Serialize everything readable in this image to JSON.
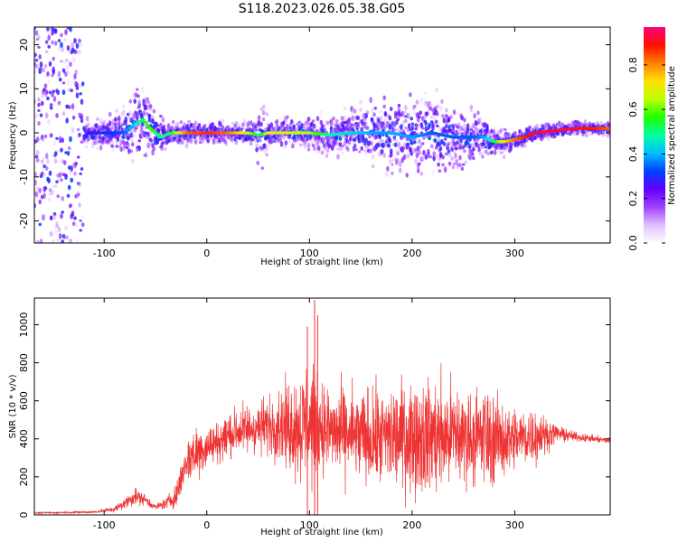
{
  "title": "S118.2023.026.05.38.G05",
  "chart_data": [
    {
      "type": "heatmap",
      "xlabel": "Height of straight line (km)",
      "ylabel": "Frequency (Hz)",
      "xlim": [
        -168,
        393
      ],
      "ylim": [
        -25,
        24
      ],
      "x_ticks": [
        "-100",
        "0",
        "100",
        "200",
        "300"
      ],
      "y_ticks": [
        "20",
        "10",
        "0",
        "-10",
        "-20"
      ],
      "colorbar": {
        "label": "Normalized spectral amplitude",
        "range": [
          0,
          0.97
        ],
        "ticks": [
          "0.0",
          "0.2",
          "0.4",
          "0.6",
          "0.8"
        ],
        "colors": [
          "#ffffff",
          "#e0c0ff",
          "#a040ff",
          "#6000ff",
          "#0040ff",
          "#00c0ff",
          "#00ffa0",
          "#20ff00",
          "#c0ff00",
          "#ffe000",
          "#ff8000",
          "#ff1000",
          "#ff0080"
        ]
      },
      "ridge": {
        "x": [
          -120,
          -100,
          -80,
          -70,
          -62,
          -55,
          -45,
          -35,
          -20,
          0,
          20,
          40,
          50,
          60,
          80,
          100,
          120,
          140,
          160,
          180,
          200,
          220,
          240,
          260,
          270,
          280,
          290,
          300,
          310,
          320,
          340,
          360,
          380,
          393
        ],
        "y": [
          0,
          0,
          0,
          2,
          3,
          1,
          -1,
          0,
          0,
          0,
          0,
          0,
          -0.5,
          0,
          0,
          0,
          -0.5,
          0,
          0,
          0,
          -1,
          0,
          -1,
          -1,
          -1,
          -2,
          -2,
          -1.5,
          -1,
          0,
          0.5,
          1,
          1,
          1
        ],
        "amplitude": [
          0.25,
          0.3,
          0.35,
          0.45,
          0.55,
          0.6,
          0.5,
          0.55,
          0.85,
          0.9,
          0.85,
          0.7,
          0.5,
          0.7,
          0.7,
          0.65,
          0.5,
          0.45,
          0.4,
          0.4,
          0.4,
          0.35,
          0.35,
          0.35,
          0.4,
          0.55,
          0.75,
          0.85,
          0.9,
          0.95,
          0.95,
          0.95,
          0.9,
          0.85
        ]
      },
      "spread_hz": {
        "x": [
          -168,
          -125,
          -120,
          -100,
          -80,
          -70,
          -60,
          -40,
          0,
          40,
          55,
          60,
          100,
          150,
          180,
          220,
          240,
          270,
          300,
          340,
          393
        ],
        "y": [
          24,
          24,
          4,
          4,
          8,
          12,
          12,
          4,
          3,
          3,
          10,
          4,
          5,
          8,
          11,
          13,
          11,
          6,
          3,
          2,
          2
        ]
      }
    },
    {
      "type": "line",
      "xlabel": "Height of straight line (km)",
      "ylabel": "SNR (10 * v/v)",
      "xlim": [
        -168,
        393
      ],
      "ylim": [
        0,
        1140
      ],
      "x_ticks": [
        "-100",
        "0",
        "100",
        "200",
        "300"
      ],
      "y_ticks": [
        "0",
        "200",
        "400",
        "600",
        "800",
        "1000"
      ],
      "color": "#ee3333",
      "series": [
        {
          "envelope_x": [
            -168,
            -110,
            -90,
            -80,
            -70,
            -60,
            -50,
            -40,
            -30,
            -20,
            -10,
            0,
            10,
            20,
            30,
            40,
            50,
            60,
            70,
            80,
            90,
            100,
            110,
            120,
            140,
            160,
            180,
            200,
            220,
            240,
            260,
            270,
            280,
            300,
            320,
            330,
            340,
            360,
            393
          ],
          "mean": [
            10,
            15,
            30,
            60,
            100,
            80,
            40,
            60,
            100,
            280,
            330,
            360,
            380,
            420,
            440,
            450,
            460,
            470,
            480,
            470,
            470,
            480,
            470,
            440,
            420,
            400,
            410,
            420,
            410,
            420,
            410,
            400,
            400,
            400,
            420,
            420,
            430,
            410,
            390
          ],
          "amplitude": [
            5,
            8,
            20,
            40,
            60,
            40,
            20,
            40,
            80,
            150,
            200,
            150,
            140,
            160,
            170,
            180,
            180,
            200,
            250,
            300,
            380,
            450,
            300,
            300,
            320,
            330,
            360,
            390,
            400,
            380,
            300,
            380,
            300,
            220,
            200,
            120,
            60,
            30,
            20
          ],
          "peaks": [
            {
              "x": 105,
              "y": 1130
            },
            {
              "x": 108,
              "y": 1050
            },
            {
              "x": 98,
              "y": 990
            }
          ]
        }
      ]
    }
  ]
}
